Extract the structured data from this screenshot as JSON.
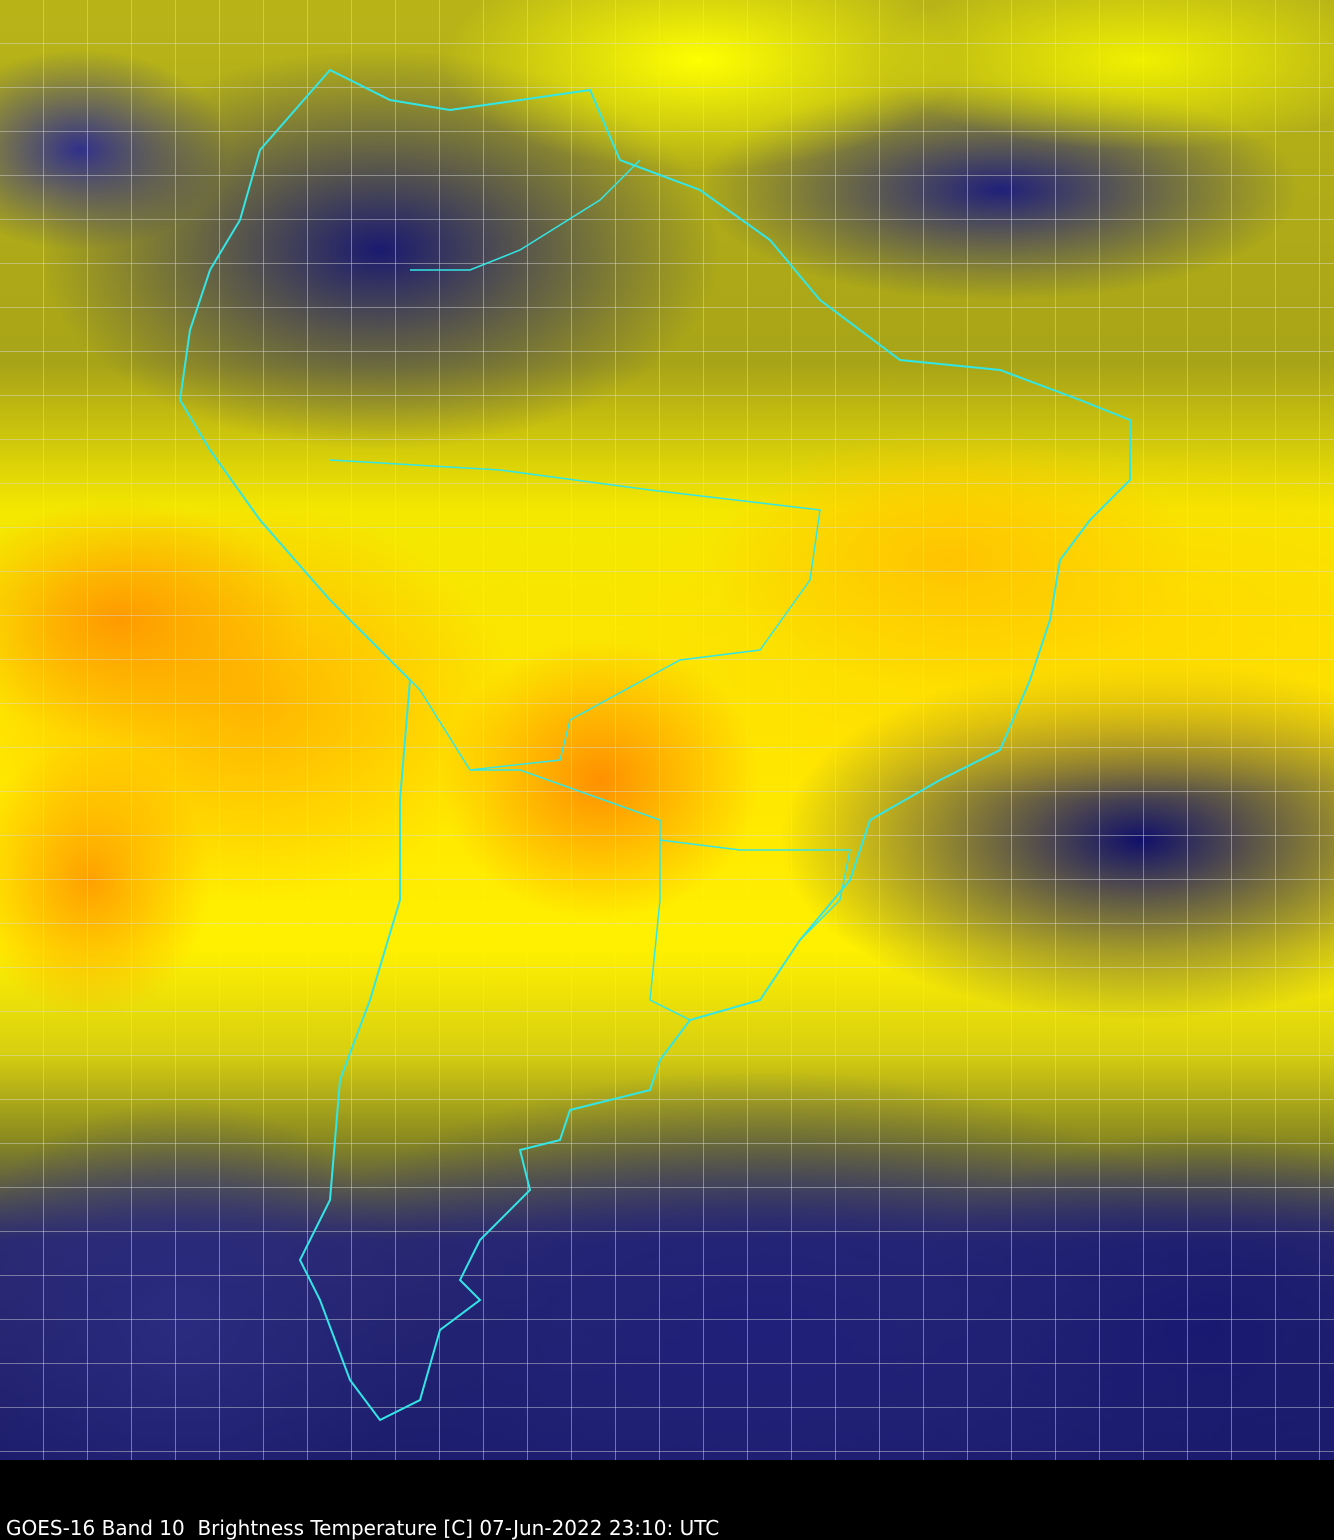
{
  "caption": "GOES-16 Band 10  Brightness Temperature [C] 07-Jun-2022 23:10: UTC",
  "colors": {
    "border_lines": "#33e6e6",
    "grid": "#dcdcdc",
    "background": "#000000"
  }
}
